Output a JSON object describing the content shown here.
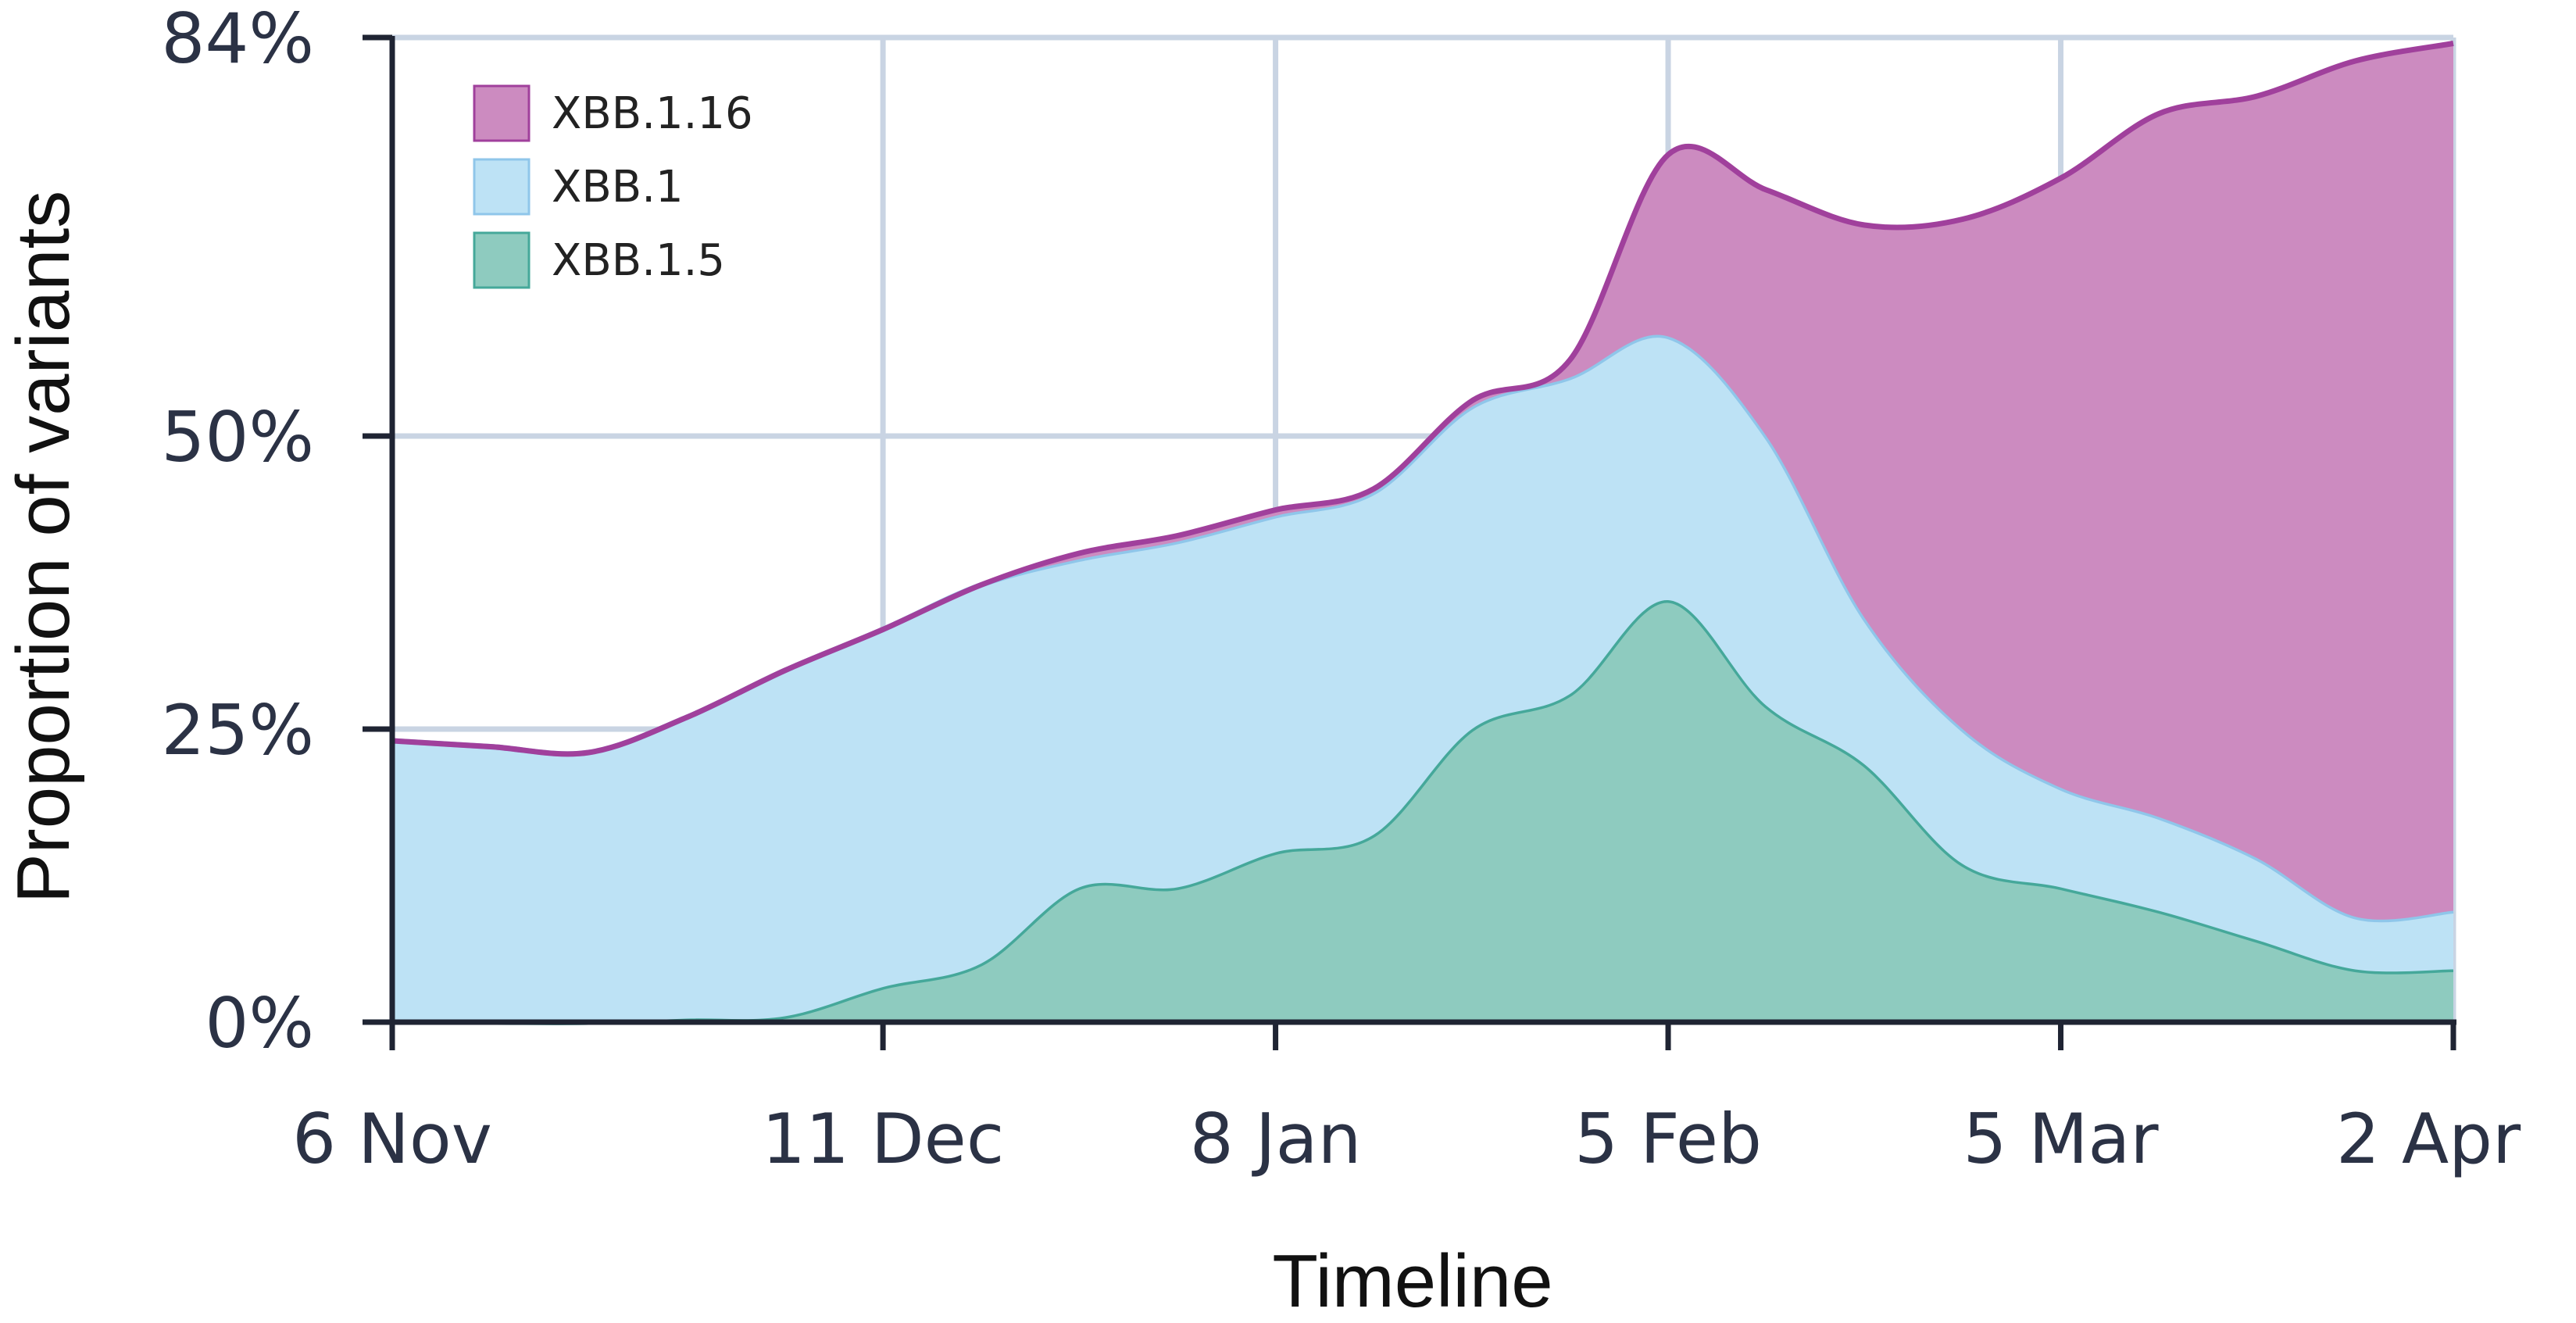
{
  "chart_data": {
    "type": "area",
    "stacked": true,
    "title": "",
    "xlabel": "Timeline",
    "ylabel": "Proportion of variants",
    "x_tick_labels": [
      "6 Nov",
      "11 Dec",
      "8 Jan",
      "5 Feb",
      "5 Mar",
      "2 Apr"
    ],
    "y_tick_labels": [
      "0%",
      "25%",
      "50%",
      "84%"
    ],
    "y_ticks": [
      0,
      25,
      50,
      84
    ],
    "ylim": [
      0,
      84
    ],
    "xlim": [
      "6 Nov",
      "2 Apr"
    ],
    "grid": true,
    "legend_position": "top-left",
    "x": [
      "6 Nov",
      "13 Nov",
      "20 Nov",
      "27 Nov",
      "4 Dec",
      "11 Dec",
      "18 Dec",
      "25 Dec",
      "1 Jan",
      "8 Jan",
      "15 Jan",
      "22 Jan",
      "29 Jan",
      "5 Feb",
      "12 Feb",
      "19 Feb",
      "26 Feb",
      "5 Mar",
      "12 Mar",
      "19 Mar",
      "26 Mar",
      "2 Apr"
    ],
    "series": [
      {
        "name": "XBB.1.5",
        "color": "#8ecbbf",
        "line_color": "#45a89a",
        "values": [
          0,
          0,
          0,
          0.3,
          0.5,
          3,
          5,
          11.5,
          11.5,
          14.5,
          16,
          25,
          28,
          36,
          27,
          22,
          13.5,
          11.5,
          9.5,
          7,
          4.5,
          4.5
        ]
      },
      {
        "name": "XBB.1",
        "color": "#bde2f5",
        "line_color": "#8fc6ea",
        "values": [
          24,
          23.5,
          23,
          25.7,
          29.5,
          30.5,
          32.3,
          28,
          29.5,
          28.7,
          29.2,
          27.5,
          27,
          22.5,
          23,
          12.5,
          11.5,
          8.5,
          8,
          7,
          4.5,
          5
        ]
      },
      {
        "name": "XBB.1.16",
        "color": "#cc8bc0",
        "line_color": "#a0409c",
        "values": [
          0,
          0,
          0,
          0,
          0,
          0,
          0,
          0.5,
          0.5,
          0.5,
          0.3,
          0.5,
          1.5,
          15.5,
          21,
          33.5,
          43.5,
          52,
          60,
          65,
          73,
          74
        ]
      }
    ],
    "legend_entries": [
      "XBB.1.16",
      "XBB.1",
      "XBB.1.5"
    ]
  }
}
